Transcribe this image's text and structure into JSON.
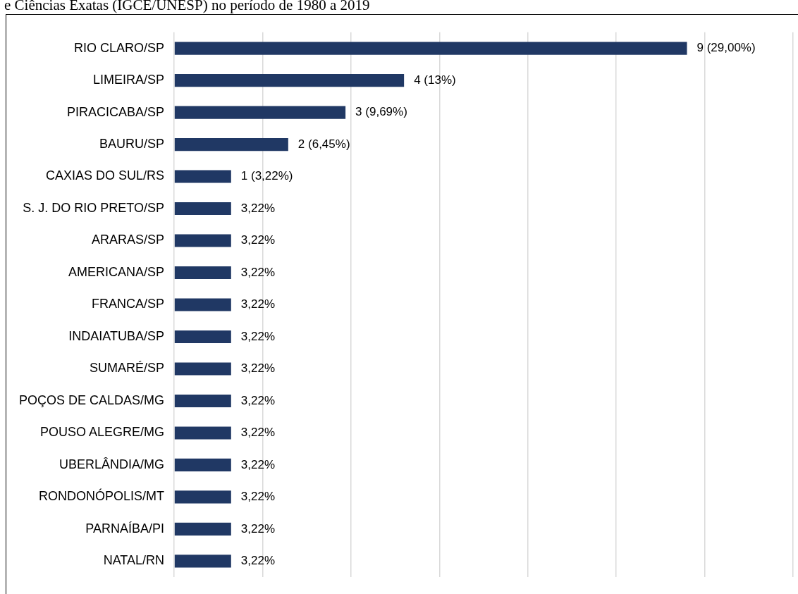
{
  "chart_data": {
    "type": "bar",
    "orientation": "horizontal",
    "title": "e Ciências Exatas (IGCE/UNESP) no período de 1980 a 2019",
    "categories": [
      "RIO CLARO/SP",
      "LIMEIRA/SP",
      "PIRACICABA/SP",
      "BAURU/SP",
      "CAXIAS DO SUL/RS",
      "S. J. DO RIO PRETO/SP",
      "ARARAS/SP",
      "AMERICANA/SP",
      "FRANCA/SP",
      "INDAIATUBA/SP",
      "SUMARÉ/SP",
      "POÇOS DE CALDAS/MG",
      "POUSO ALEGRE/MG",
      "UBERLÂNDIA/MG",
      "RONDONÓPOLIS/MT",
      "PARNAÍBA/PI",
      "NATAL/RN"
    ],
    "values": [
      29.0,
      13,
      9.69,
      6.45,
      3.22,
      3.22,
      3.22,
      3.22,
      3.22,
      3.22,
      3.22,
      3.22,
      3.22,
      3.22,
      3.22,
      3.22,
      3.22
    ],
    "value_labels": [
      "9 (29,00%)",
      "4 (13%)",
      "3 (9,69%)",
      "2 (6,45%)",
      "1 (3,22%)",
      "3,22%",
      "3,22%",
      "3,22%",
      "3,22%",
      "3,22%",
      "3,22%",
      "3,22%",
      "3,22%",
      "3,22%",
      "3,22%",
      "3,22%",
      "3,22%"
    ],
    "color": "#203864",
    "xlim": [
      0,
      35
    ],
    "xticks": [
      {
        "value": 0,
        "label": null
      },
      {
        "value": 5,
        "label": null
      },
      {
        "value": 10,
        "label": null
      },
      {
        "value": 15,
        "label": null
      },
      {
        "value": 20,
        "label": null
      },
      {
        "value": 25,
        "label": null
      },
      {
        "value": 30,
        "label": null
      },
      {
        "value": 35,
        "label": null
      }
    ],
    "grid": "x",
    "tick_labels": "y"
  }
}
